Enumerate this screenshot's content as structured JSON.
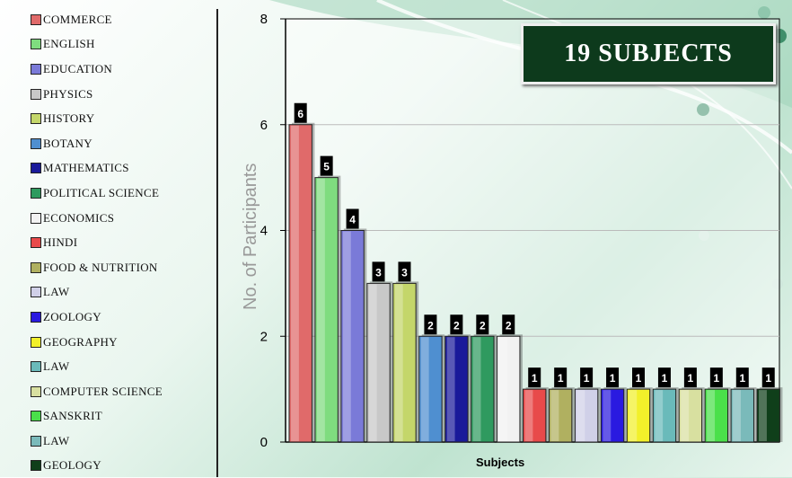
{
  "chart_data": {
    "type": "bar",
    "title": "19 SUBJECTS",
    "xlabel": "Subjects",
    "ylabel": "No. of Participants",
    "ylim": [
      0,
      8
    ],
    "yticks": [
      "0",
      "2",
      "4",
      "6",
      "8"
    ],
    "grid": true,
    "legend_position": "left",
    "categories": [
      "COMMERCE",
      "ENGLISH",
      "EDUCATION",
      "PHYSICS",
      "HISTORY",
      "BOTANY",
      "MATHEMATICS",
      "POLITICAL SCIENCE",
      "ECONOMICS",
      "HINDI",
      "FOOD & NUTRITION",
      "LAW",
      "ZOOLOGY",
      "GEOGRAPHY",
      "LAW",
      "COMPUTER SCIENCE",
      "SANSKRIT",
      "LAW",
      "GEOLOGY"
    ],
    "values": [
      6,
      5,
      4,
      3,
      3,
      2,
      2,
      2,
      2,
      1,
      1,
      1,
      1,
      1,
      1,
      1,
      1,
      1,
      1
    ],
    "colors": [
      "#e06a6a",
      "#7fdc7f",
      "#7a7ad8",
      "#c8c8c8",
      "#c4d66a",
      "#4f8fd0",
      "#1a1a9a",
      "#2f9a5f",
      "#f2f2f2",
      "#e84a4a",
      "#b0b060",
      "#d0d0e8",
      "#2a1ae0",
      "#f2f02a",
      "#6ababa",
      "#d8e0a0",
      "#4ae04a",
      "#7ababa",
      "#0f3f1a"
    ],
    "data_labels": [
      "6",
      "5",
      "4",
      "3",
      "3",
      "2",
      "2",
      "2",
      "2",
      "1",
      "1",
      "1",
      "1",
      "1",
      "1",
      "1",
      "1",
      "1",
      "1"
    ]
  },
  "legend": {
    "items": [
      "COMMERCE",
      "ENGLISH",
      "EDUCATION",
      "PHYSICS",
      "HISTORY",
      "BOTANY",
      "MATHEMATICS",
      "POLITICAL SCIENCE",
      "ECONOMICS",
      "HINDI",
      "FOOD & NUTRITION",
      "LAW",
      "ZOOLOGY",
      "GEOGRAPHY",
      "LAW",
      "COMPUTER SCIENCE",
      "SANSKRIT",
      "LAW",
      "GEOLOGY"
    ]
  }
}
